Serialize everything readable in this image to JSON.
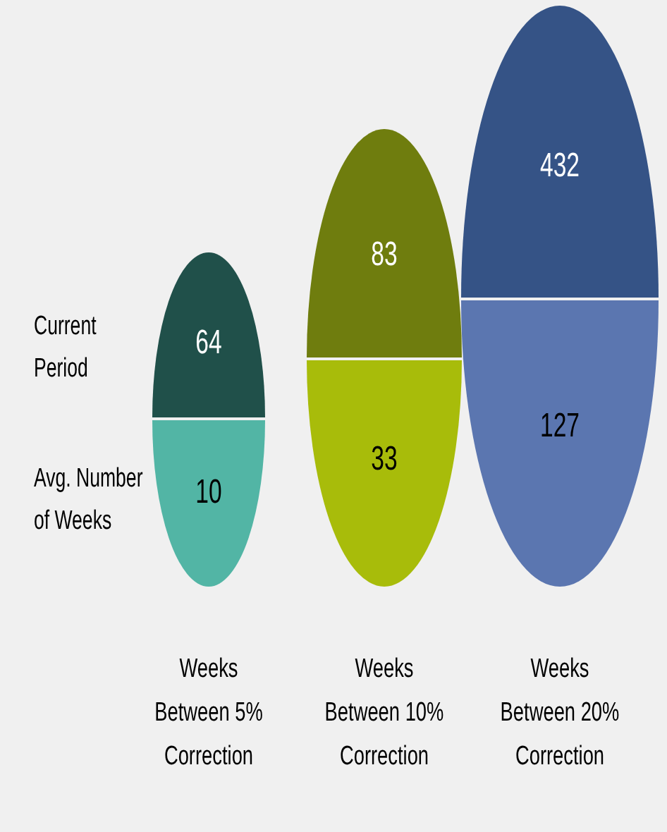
{
  "chart_data": {
    "type": "other",
    "categories": [
      "Weeks Between 5% Correction",
      "Weeks Between 10% Correction",
      "Weeks Between 20% Correction"
    ],
    "series": [
      {
        "name": "Current Period",
        "colors": [
          "#20504a",
          "#6f7d0e",
          "#355386"
        ],
        "values": [
          64,
          83,
          432
        ]
      },
      {
        "name": "Avg. Number of Weeks",
        "colors": [
          "#52b5a5",
          "#a8bc0a",
          "#5b76b0"
        ],
        "values": [
          10,
          33,
          127
        ]
      }
    ],
    "data_labels": true
  }
}
